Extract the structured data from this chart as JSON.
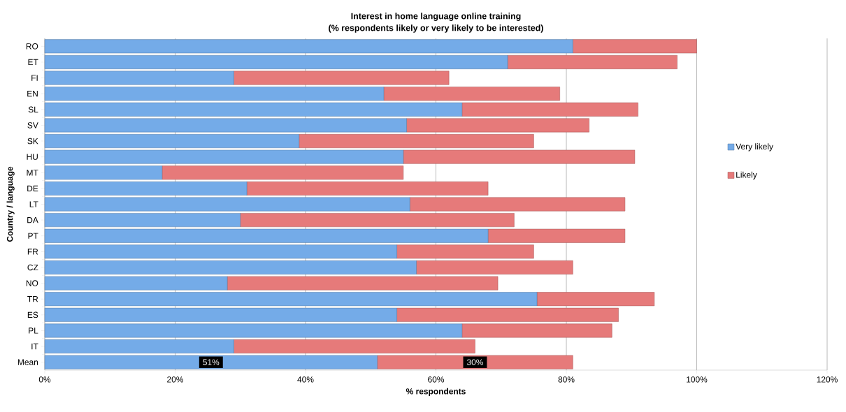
{
  "chart_data": {
    "type": "bar",
    "orientation": "horizontal",
    "stacked": true,
    "title": "Interest in home language online training",
    "subtitle": "(% respondents likely or very likely to be interested)",
    "xlabel": "% respondents",
    "ylabel": "Country / language",
    "categories": [
      "RO",
      "ET",
      "FI",
      "EN",
      "SL",
      "SV",
      "SK",
      "HU",
      "MT",
      "DE",
      "LT",
      "DA",
      "PT",
      "FR",
      "CZ",
      "NO",
      "TR",
      "ES",
      "PL",
      "IT",
      "Mean"
    ],
    "series": [
      {
        "name": "Very likely",
        "color": "#74abe8",
        "values": [
          81,
          71,
          29,
          52,
          64,
          55.5,
          39,
          55,
          18,
          31,
          56,
          30,
          68,
          54,
          57,
          28,
          75.5,
          54,
          64,
          29,
          51
        ],
        "value_labels": [
          null,
          null,
          null,
          null,
          null,
          null,
          null,
          null,
          null,
          null,
          null,
          null,
          null,
          null,
          null,
          null,
          null,
          null,
          null,
          null,
          "51%"
        ]
      },
      {
        "name": "Likely",
        "color": "#e67a7a",
        "values": [
          19,
          26,
          33,
          27,
          27,
          28,
          36,
          35.5,
          37,
          37,
          33,
          42,
          21,
          21,
          24,
          41.5,
          18,
          34,
          23,
          37,
          30
        ],
        "value_labels": [
          null,
          null,
          null,
          null,
          null,
          null,
          null,
          null,
          null,
          null,
          null,
          null,
          null,
          null,
          null,
          null,
          null,
          null,
          null,
          null,
          "30%"
        ]
      }
    ],
    "xlim": [
      0,
      120
    ],
    "xticks": [
      {
        "value": 0,
        "label": "0%"
      },
      {
        "value": 20,
        "label": "20%"
      },
      {
        "value": 40,
        "label": "40%"
      },
      {
        "value": 60,
        "label": "60%"
      },
      {
        "value": 80,
        "label": "80%"
      },
      {
        "value": 100,
        "label": "100%"
      },
      {
        "value": 120,
        "label": "120%"
      }
    ],
    "grid": "x",
    "legend": "right"
  }
}
